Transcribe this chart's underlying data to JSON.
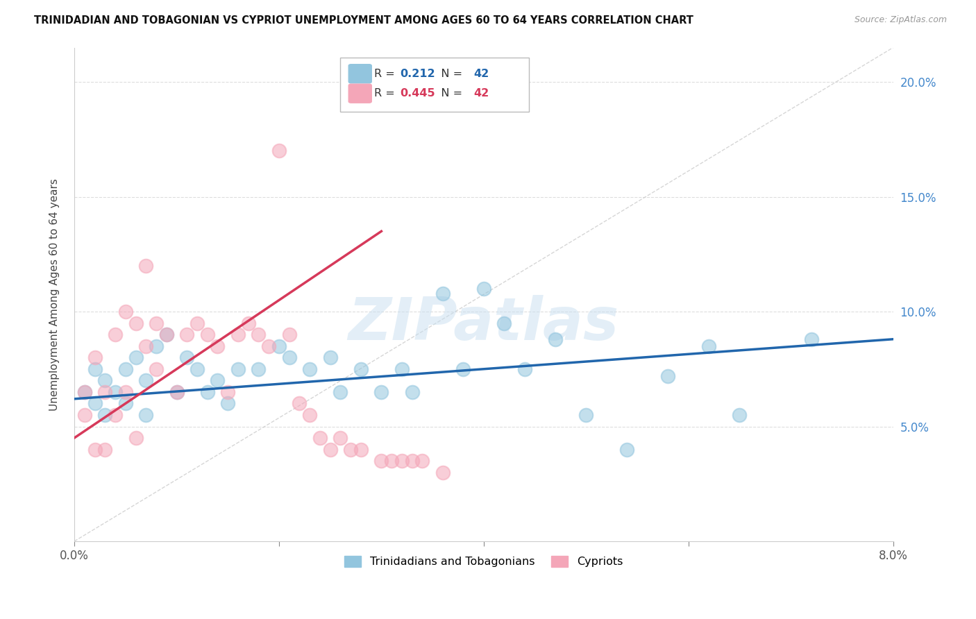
{
  "title": "TRINIDADIAN AND TOBAGONIAN VS CYPRIOT UNEMPLOYMENT AMONG AGES 60 TO 64 YEARS CORRELATION CHART",
  "source": "Source: ZipAtlas.com",
  "ylabel": "Unemployment Among Ages 60 to 64 years",
  "ytick_labels": [
    "5.0%",
    "10.0%",
    "15.0%",
    "20.0%"
  ],
  "ytick_values": [
    0.05,
    0.1,
    0.15,
    0.2
  ],
  "xtick_values": [
    0.0,
    0.02,
    0.04,
    0.06,
    0.08
  ],
  "xtick_labels": [
    "0.0%",
    "",
    "",
    "",
    "8.0%"
  ],
  "xmin": 0.0,
  "xmax": 0.08,
  "ymin": 0.0,
  "ymax": 0.215,
  "legend_blue_R": "0.212",
  "legend_blue_N": "42",
  "legend_pink_R": "0.445",
  "legend_pink_N": "42",
  "legend_label_blue": "Trinidadians and Tobagonians",
  "legend_label_pink": "Cypriots",
  "blue_color": "#92c5de",
  "pink_color": "#f4a6b8",
  "blue_line_color": "#2166ac",
  "pink_line_color": "#d6395a",
  "diagonal_color": "#cccccc",
  "watermark": "ZIPatlas",
  "blue_scatter_x": [
    0.001,
    0.002,
    0.002,
    0.003,
    0.003,
    0.004,
    0.005,
    0.005,
    0.006,
    0.007,
    0.007,
    0.008,
    0.009,
    0.01,
    0.011,
    0.012,
    0.013,
    0.014,
    0.015,
    0.016,
    0.018,
    0.02,
    0.021,
    0.023,
    0.025,
    0.026,
    0.028,
    0.03,
    0.032,
    0.033,
    0.036,
    0.038,
    0.04,
    0.042,
    0.044,
    0.047,
    0.05,
    0.054,
    0.058,
    0.062,
    0.065,
    0.072
  ],
  "blue_scatter_y": [
    0.065,
    0.075,
    0.06,
    0.07,
    0.055,
    0.065,
    0.075,
    0.06,
    0.08,
    0.07,
    0.055,
    0.085,
    0.09,
    0.065,
    0.08,
    0.075,
    0.065,
    0.07,
    0.06,
    0.075,
    0.075,
    0.085,
    0.08,
    0.075,
    0.08,
    0.065,
    0.075,
    0.065,
    0.075,
    0.065,
    0.108,
    0.075,
    0.11,
    0.095,
    0.075,
    0.088,
    0.055,
    0.04,
    0.072,
    0.085,
    0.055,
    0.088
  ],
  "pink_scatter_x": [
    0.001,
    0.001,
    0.002,
    0.002,
    0.003,
    0.003,
    0.004,
    0.004,
    0.005,
    0.005,
    0.006,
    0.006,
    0.007,
    0.007,
    0.008,
    0.008,
    0.009,
    0.01,
    0.011,
    0.012,
    0.013,
    0.014,
    0.015,
    0.016,
    0.017,
    0.018,
    0.019,
    0.02,
    0.021,
    0.022,
    0.023,
    0.024,
    0.025,
    0.026,
    0.027,
    0.028,
    0.03,
    0.031,
    0.032,
    0.033,
    0.034,
    0.036
  ],
  "pink_scatter_y": [
    0.065,
    0.055,
    0.08,
    0.04,
    0.065,
    0.04,
    0.09,
    0.055,
    0.1,
    0.065,
    0.095,
    0.045,
    0.12,
    0.085,
    0.095,
    0.075,
    0.09,
    0.065,
    0.09,
    0.095,
    0.09,
    0.085,
    0.065,
    0.09,
    0.095,
    0.09,
    0.085,
    0.17,
    0.09,
    0.06,
    0.055,
    0.045,
    0.04,
    0.045,
    0.04,
    0.04,
    0.035,
    0.035,
    0.035,
    0.035,
    0.035,
    0.03
  ],
  "blue_trend_x": [
    0.0,
    0.08
  ],
  "blue_trend_y": [
    0.062,
    0.088
  ],
  "pink_trend_x": [
    0.0,
    0.03
  ],
  "pink_trend_y": [
    0.045,
    0.135
  ]
}
